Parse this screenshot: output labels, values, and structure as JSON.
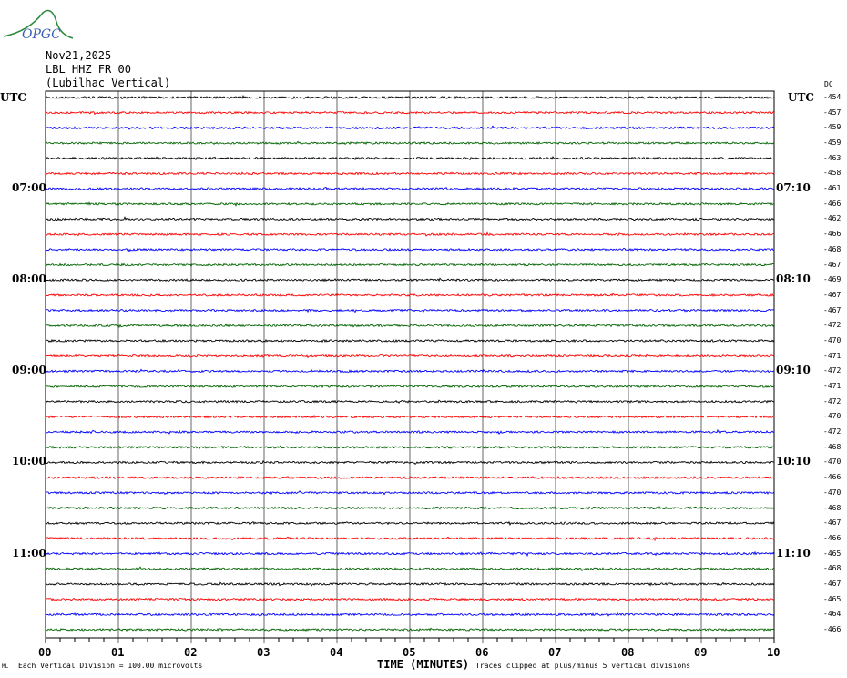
{
  "header": {
    "logo_text": "OPGC",
    "date": "Nov21,2025",
    "station": "LBL HHZ FR 00",
    "location": "(Lubilhac Vertical)"
  },
  "chart_data": {
    "type": "line",
    "title": "",
    "left_axis_label": "UTC",
    "right_axis_label": "UTC",
    "dc_label": "DC",
    "left_time_labels": [
      "07:00",
      "08:00",
      "09:00",
      "10:00",
      "11:00"
    ],
    "right_time_labels": [
      "07:10",
      "08:10",
      "09:10",
      "10:10",
      "11:10"
    ],
    "trace_count": 36,
    "trace_colors": [
      "#000000",
      "#ff0000",
      "#0000ff",
      "#006400"
    ],
    "dc_offsets": [
      -454,
      -457,
      -459,
      -459,
      -463,
      -458,
      -461,
      -466,
      -462,
      -466,
      -468,
      -467,
      -469,
      -467,
      -467,
      -472,
      -470,
      -471,
      -472,
      -471,
      -472,
      -470,
      -472,
      -468,
      -470,
      -466,
      -470,
      -468,
      -467,
      -466,
      -465,
      -468,
      -467,
      -465,
      -464,
      -466
    ],
    "x_ticks": [
      "00",
      "01",
      "02",
      "03",
      "04",
      "05",
      "06",
      "07",
      "08",
      "09",
      "10"
    ],
    "xlim": [
      0,
      10
    ],
    "xlabel": "TIME (MINUTES)",
    "grid": true
  },
  "footer": {
    "scale": "Each Vertical Division =  100.00 microvolts",
    "clip": "Traces clipped at plus/minus 5 vertical divisions",
    "corner": "ML"
  }
}
